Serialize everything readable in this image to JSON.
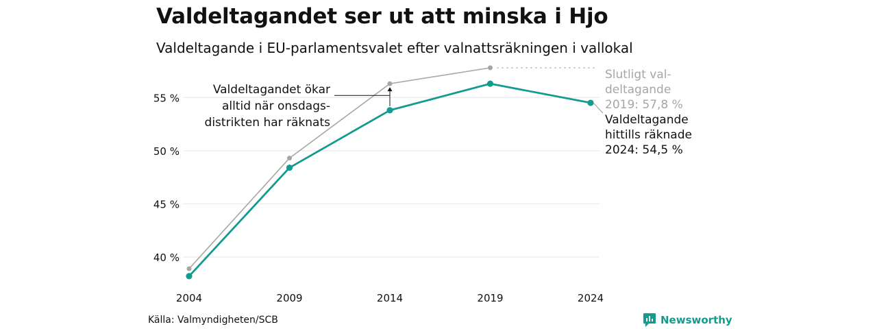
{
  "title": "Valdeltagandet ser ut att minska i Hjo",
  "subtitle": "Valdeltagande i EU-parlamentsvalet efter valnattsräkningen i vallokal",
  "source": "Källa: Valmyndigheten/SCB",
  "brand": "Newsworthy",
  "colors": {
    "counted": "#129b8e",
    "final": "#a6a6a6",
    "grid": "#e6e6e6",
    "brand": "#129b8e"
  },
  "chart_data": {
    "type": "line",
    "x": [
      "2004",
      "2009",
      "2014",
      "2019",
      "2024"
    ],
    "ylim": [
      38,
      58.5
    ],
    "yticks": [
      40,
      45,
      50,
      55
    ],
    "ytick_labels": [
      "40 %",
      "45 %",
      "50 %",
      "55 %"
    ],
    "grid": true,
    "series": [
      {
        "name": "Slutligt valdeltagande",
        "color": "#a6a6a6",
        "values": [
          38.9,
          49.3,
          56.3,
          57.8,
          null
        ]
      },
      {
        "name": "Valdeltagande hittills räknade",
        "color": "#129b8e",
        "values": [
          38.2,
          48.4,
          53.8,
          56.3,
          54.5
        ]
      }
    ],
    "annotations": {
      "final_label": [
        "Slutligt val-",
        "deltagande",
        "2019: 57,8 %"
      ],
      "counted_label": [
        "Valdeltagande",
        "hittills räknade",
        "2024: 54,5 %"
      ],
      "note": [
        "Valdeltagandet ökar",
        "alltid när onsdags-",
        "distrikten har räknats"
      ]
    }
  }
}
